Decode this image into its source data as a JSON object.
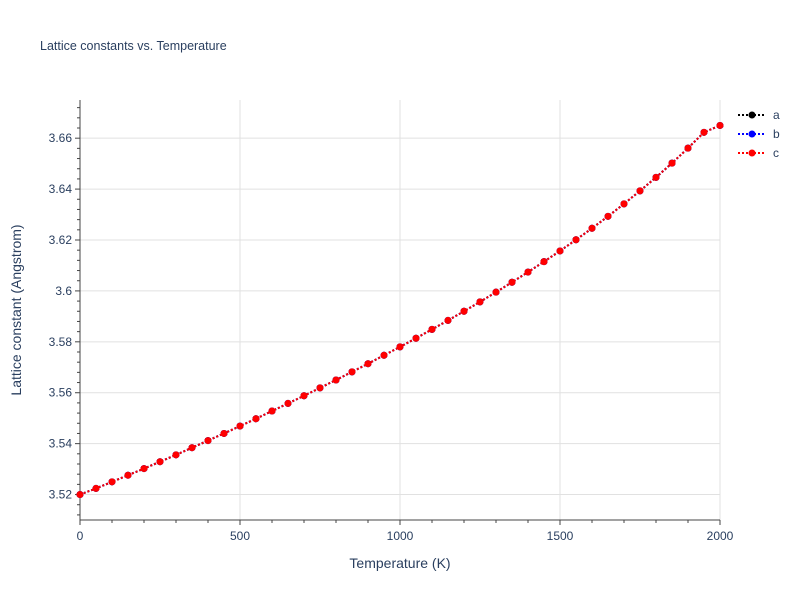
{
  "chart_data": {
    "type": "line",
    "title": "Lattice constants vs. Temperature",
    "xlabel": "Temperature (K)",
    "ylabel": "Lattice constant (Angstrom)",
    "xlim": [
      0,
      2000
    ],
    "ylim": [
      3.51,
      3.675
    ],
    "xticks": [
      0,
      500,
      1000,
      1500,
      2000
    ],
    "xtick_labels": [
      "0",
      "500",
      "1000",
      "1500",
      "2000"
    ],
    "yticks": [
      3.52,
      3.54,
      3.56,
      3.58,
      3.6,
      3.62,
      3.64,
      3.66
    ],
    "ytick_labels": [
      "3.52",
      "3.54",
      "3.56",
      "3.58",
      "3.6",
      "3.62",
      "3.64",
      "3.66"
    ],
    "grid": true,
    "legend_position": "top-right",
    "x": [
      0,
      50,
      100,
      150,
      200,
      250,
      300,
      350,
      400,
      450,
      500,
      550,
      600,
      650,
      700,
      750,
      800,
      850,
      900,
      950,
      1000,
      1050,
      1100,
      1150,
      1200,
      1250,
      1300,
      1350,
      1400,
      1450,
      1500,
      1550,
      1600,
      1650,
      1700,
      1750,
      1800,
      1850,
      1900,
      1950,
      2000
    ],
    "series": [
      {
        "name": "a",
        "color": "#000000",
        "values": [
          3.52,
          3.5224,
          3.525,
          3.5276,
          3.5302,
          3.5329,
          3.5356,
          3.5384,
          3.5412,
          3.544,
          3.5469,
          3.5498,
          3.5528,
          3.5558,
          3.5588,
          3.5619,
          3.565,
          3.5682,
          3.5714,
          3.5747,
          3.578,
          3.5814,
          3.5849,
          3.5884,
          3.592,
          3.5957,
          3.5995,
          3.6034,
          3.6074,
          3.6115,
          3.6157,
          3.6201,
          3.6246,
          3.6293,
          3.6342,
          3.6393,
          3.6446,
          3.6502,
          3.6561,
          3.6623,
          3.665
        ]
      },
      {
        "name": "b",
        "color": "#0000ff",
        "values": [
          3.52,
          3.5224,
          3.525,
          3.5276,
          3.5302,
          3.5329,
          3.5356,
          3.5384,
          3.5412,
          3.544,
          3.5469,
          3.5498,
          3.5528,
          3.5558,
          3.5588,
          3.5619,
          3.565,
          3.5682,
          3.5714,
          3.5747,
          3.578,
          3.5814,
          3.5849,
          3.5884,
          3.592,
          3.5957,
          3.5995,
          3.6034,
          3.6074,
          3.6115,
          3.6157,
          3.6201,
          3.6246,
          3.6293,
          3.6342,
          3.6393,
          3.6446,
          3.6502,
          3.6561,
          3.6623,
          3.665
        ]
      },
      {
        "name": "c",
        "color": "#ff0000",
        "values": [
          3.52,
          3.5224,
          3.525,
          3.5276,
          3.5302,
          3.5329,
          3.5356,
          3.5384,
          3.5412,
          3.544,
          3.5469,
          3.5498,
          3.5528,
          3.5558,
          3.5588,
          3.5619,
          3.565,
          3.5682,
          3.5714,
          3.5747,
          3.578,
          3.5814,
          3.5849,
          3.5884,
          3.592,
          3.5957,
          3.5995,
          3.6034,
          3.6074,
          3.6115,
          3.6157,
          3.6201,
          3.6246,
          3.6293,
          3.6342,
          3.6393,
          3.6446,
          3.6502,
          3.6561,
          3.6623,
          3.665
        ]
      }
    ]
  }
}
